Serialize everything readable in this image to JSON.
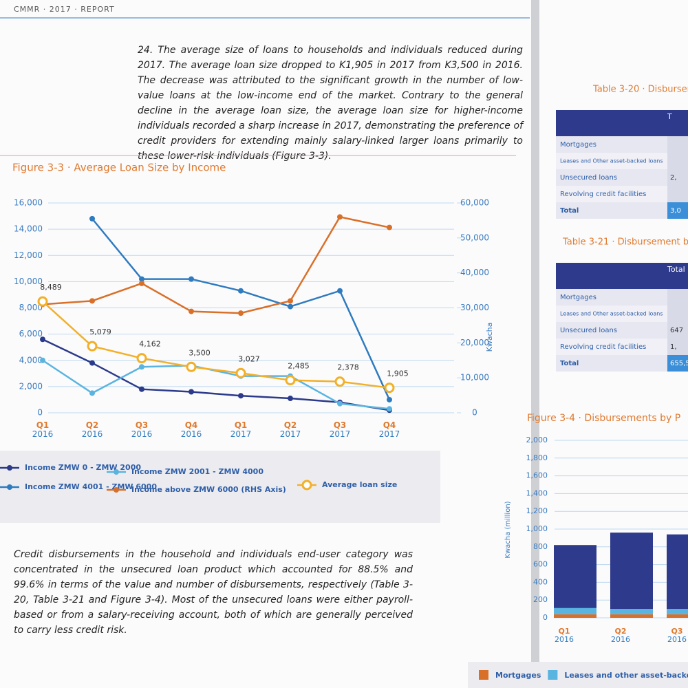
{
  "header": "CMMR · 2017 · REPORT",
  "paragraphs": [
    {
      "number": "24.",
      "text": "The average size of loans to households and individuals reduced during 2017. The average loan size dropped to K1,905 in 2017 from K3,500 in 2016. The decrease was attributed to the significant growth in the number of low-value loans at the low-income end of the market. Contrary to the general decline in the average loan size, the average loan size for higher-income individuals recorded a sharp increase in 2017, demonstrating the preference of credit providers for extending mainly salary-linked larger loans primarily to these lower-risk individuals (Figure 3-3)."
    },
    {
      "text": "Credit disbursements in the household and individuals end-user category was concentrated in the unsecured loan product which accounted for 88.5% and 99.6% in terms of the value and number of disbursements, respectively (Table 3-20, Table 3-21 and Figure 3-4). Most of the unsecured loans were either payroll-based or from a salary-receiving account, both of which are generally perceived to carry less credit risk."
    }
  ],
  "chart_data": [
    {
      "type": "line",
      "title": "Figure 3-3 · Average Loan Size by Income",
      "categories": [
        "Q1 2016",
        "Q2 2016",
        "Q3 2016",
        "Q4 2016",
        "Q1 2017",
        "Q2 2017",
        "Q3 2017",
        "Q4 2017"
      ],
      "ylim": [
        0,
        16000
      ],
      "yticks": [
        0,
        {
          "value": 2000,
          "label": "2,000"
        },
        {
          "value": 4000,
          "label": "4,000"
        },
        {
          "value": 6000,
          "label": "6,000"
        },
        {
          "value": 8000,
          "label": "8,000"
        },
        {
          "value": 10000,
          "label": "10,000"
        },
        {
          "value": 12000,
          "label": "12,000"
        },
        {
          "value": 14000,
          "label": "14,000"
        },
        {
          "value": 16000,
          "label": "16,000"
        }
      ],
      "y2lim": [
        0,
        60000
      ],
      "y2ticks": [
        0,
        {
          "value": 10000,
          "label": "10,000"
        },
        {
          "value": 20000,
          "label": "20,000"
        },
        {
          "value": 30000,
          "label": "30,000"
        },
        {
          "value": 40000,
          "label": "40,000"
        },
        {
          "value": 50000,
          "label": "50,000"
        },
        {
          "value": 60000,
          "label": "60,000"
        }
      ],
      "y2label": "Kwacha",
      "grid": true,
      "series": [
        {
          "name": "Income ZMW 0 - ZMW 2000",
          "color": "#2b3a8a",
          "values": [
            5600,
            3800,
            1800,
            1600,
            1300,
            1100,
            800,
            200
          ]
        },
        {
          "name": "Income ZMW 2001 - ZMW 4000",
          "color": "#5ab4e0",
          "values": [
            4000,
            1500,
            3500,
            3600,
            2800,
            2800,
            700,
            300
          ]
        },
        {
          "name": "Income ZMW 4001 - ZMW 6000",
          "color": "#2f7bbf",
          "values": [
            null,
            14800,
            10200,
            10200,
            9300,
            8100,
            9300,
            1000
          ]
        },
        {
          "name": "Income above ZMW 6000 (RHS Axis)",
          "color": "#d9702a",
          "axis": "y2",
          "values": [
            31000,
            32000,
            37000,
            29000,
            28500,
            32000,
            56000,
            53000
          ]
        },
        {
          "name": "Average loan size",
          "color": "#f2b02a",
          "values": [
            8489,
            5079,
            4162,
            3500,
            3027,
            2485,
            2378,
            1905
          ],
          "value_labels": [
            "8,489",
            "5,079",
            "4,162",
            "3,500",
            "3,027",
            "2,485",
            "2,378",
            "1,905"
          ]
        }
      ]
    },
    {
      "type": "bar",
      "stacked": true,
      "title": "Figure 3-4 · Disbursements by P",
      "ylabel": "Kwacha (million)",
      "categories": [
        "Q1 2016",
        "Q2 2016",
        "Q3 2016"
      ],
      "ylim": [
        0,
        2000
      ],
      "yticks": [
        0,
        200,
        400,
        600,
        800,
        {
          "value": 1000,
          "label": "1,000"
        },
        {
          "value": 1200,
          "label": "1,200"
        },
        {
          "value": 1400,
          "label": "1,400"
        },
        {
          "value": 1600,
          "label": "1,600"
        },
        {
          "value": 1800,
          "label": "1,800"
        },
        {
          "value": 2000,
          "label": "2,000"
        }
      ],
      "grid": true,
      "series": [
        {
          "name": "Mortgages",
          "color": "#d9702a",
          "values": [
            40,
            40,
            40
          ]
        },
        {
          "name": "Leases and other asset-backe",
          "color": "#5ab4e0",
          "values": [
            70,
            60,
            60
          ]
        },
        {
          "color": "#2e3a8c",
          "values": [
            710,
            860,
            840
          ]
        }
      ]
    }
  ],
  "tables": [
    {
      "title": "Table 3-20 · Disburseme",
      "header": [
        "T"
      ],
      "rows": [
        [
          "Mortgages"
        ],
        [
          "Leases and Other asset-backed loans"
        ],
        [
          "Unsecured loans",
          "2,"
        ],
        [
          "Revolving credit facilities"
        ],
        [
          "Total",
          "3,0"
        ]
      ]
    },
    {
      "title": "Table 3-21 · Disbursement b",
      "header": [
        "Total"
      ],
      "rows": [
        [
          "Mortgages"
        ],
        [
          "Leases and Other asset-backed loans"
        ],
        [
          "Unsecured loans",
          "647"
        ],
        [
          "Revolving credit facilities",
          "1,"
        ],
        [
          "Total",
          "655,5"
        ]
      ]
    }
  ]
}
